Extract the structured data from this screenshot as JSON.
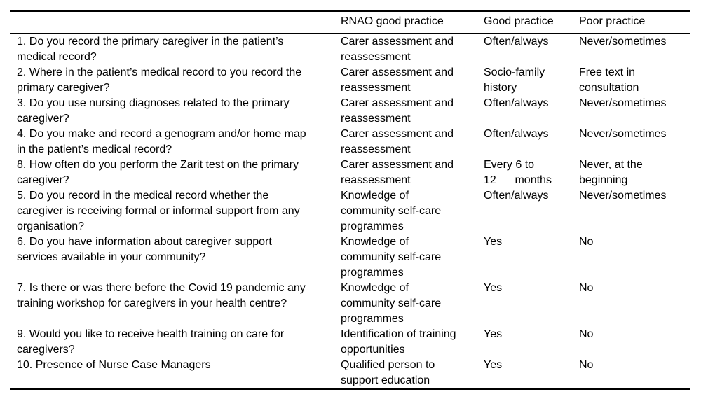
{
  "table": {
    "headers": {
      "question": "",
      "rnao": "RNAO good practice",
      "good": "Good practice",
      "poor": "Poor practice"
    },
    "rows": [
      {
        "question": "1. Do you record the primary caregiver in the patient’s\nmedical record?",
        "rnao": "Carer assessment and\nreassessment",
        "good": "Often/always",
        "poor": "Never/sometimes"
      },
      {
        "question": "2. Where in the patient’s medical record to you record the\nprimary caregiver?",
        "rnao": "Carer assessment and\nreassessment",
        "good": "Socio-family\nhistory",
        "poor": "Free text in\nconsultation"
      },
      {
        "question": "3. Do you use nursing diagnoses related to the primary\ncaregiver?",
        "rnao": "Carer assessment and\nreassessment",
        "good": "Often/always",
        "poor": "Never/sometimes"
      },
      {
        "question": "4. Do you make and record a genogram and/or home map\nin the patient’s medical record?",
        "rnao": "Carer assessment and\nreassessment",
        "good": "Often/always",
        "poor": "Never/sometimes"
      },
      {
        "question": "8. How often do you perform the Zarit test on the primary\ncaregiver?",
        "rnao": "Carer assessment and\nreassessment",
        "good": "Every 6 to\n12      months",
        "poor": "Never, at the\nbeginning"
      },
      {
        "question": "5. Do you record in the medical record whether the\ncaregiver is receiving formal or informal support from any\norganisation?",
        "rnao": "Knowledge of\ncommunity self-care\nprogrammes",
        "good": "Often/always",
        "poor": "Never/sometimes"
      },
      {
        "question": "6. Do you have information about caregiver support\nservices available in your community?",
        "rnao": "Knowledge of\ncommunity self-care\nprogrammes",
        "good": "Yes",
        "poor": "No"
      },
      {
        "question": "7. Is there or was there before the Covid 19 pandemic any\ntraining workshop for caregivers in your health centre?",
        "rnao": "Knowledge of\ncommunity self-care\nprogrammes",
        "good": "Yes",
        "poor": "No"
      },
      {
        "question": "9. Would you like to receive health training on care for\ncaregivers?",
        "rnao": "Identification of training\nopportunities",
        "good": "Yes",
        "poor": "No"
      },
      {
        "question": "10. Presence of Nurse Case Managers",
        "rnao": "Qualified person to\nsupport education",
        "good": "Yes",
        "poor": "No"
      }
    ]
  }
}
